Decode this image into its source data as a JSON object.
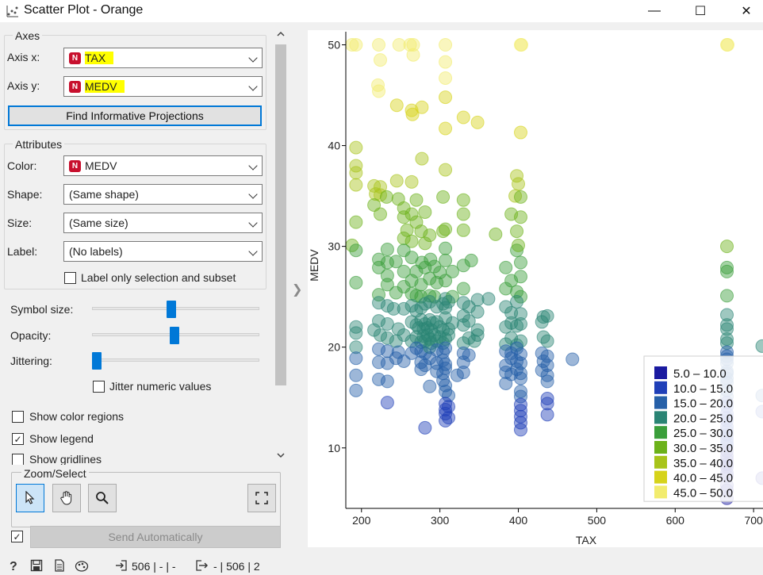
{
  "window": {
    "title": "Scatter Plot - Orange",
    "minimize": "—",
    "maximize": "☐",
    "close": "✕"
  },
  "axes": {
    "title": "Axes",
    "x_label": "Axis x:",
    "x_value": "TAX",
    "y_label": "Axis y:",
    "y_value": "MEDV",
    "find_button": "Find Informative Projections"
  },
  "attributes": {
    "title": "Attributes",
    "color_label": "Color:",
    "color_value": "MEDV",
    "shape_label": "Shape:",
    "shape_value": "(Same shape)",
    "size_label": "Size:",
    "size_value": "(Same size)",
    "label_label": "Label:",
    "label_value": "(No labels)",
    "label_only": "Label only selection and subset",
    "badge": "N"
  },
  "sliders": {
    "symbol_size": {
      "label": "Symbol size:",
      "value": 0.47
    },
    "opacity": {
      "label": "Opacity:",
      "value": 0.49
    },
    "jittering": {
      "label": "Jittering:",
      "value": 0.0
    }
  },
  "options": {
    "jitter_numeric": {
      "label": "Jitter numeric values",
      "checked": false
    },
    "color_regions": {
      "label": "Show color regions",
      "checked": false
    },
    "show_legend": {
      "label": "Show legend",
      "checked": true
    },
    "gridlines": {
      "label": "Show gridlines",
      "checked": false
    }
  },
  "zoom": {
    "title": "Zoom/Select"
  },
  "send": {
    "label": "Send Automatically",
    "checked": true
  },
  "status": {
    "input": "506 | - | -",
    "output": "- | 506 | 2"
  },
  "collapse_arrow": "❯",
  "chart_data": {
    "type": "scatter",
    "xlabel": "TAX",
    "ylabel": "MEDV",
    "xlim": [
      180,
      712
    ],
    "ylim": [
      4,
      51.3
    ],
    "xticks": [
      200,
      300,
      400,
      500,
      600,
      700
    ],
    "yticks": [
      10,
      20,
      30,
      40,
      50
    ],
    "grid": false,
    "legend_position": "bottom-right",
    "legend": [
      {
        "label": "5.0 – 10.0",
        "color": "#1a1aa0"
      },
      {
        "label": "10.0 – 15.0",
        "color": "#1f3fb8"
      },
      {
        "label": "15.0 – 20.0",
        "color": "#2660a8"
      },
      {
        "label": "20.0 – 25.0",
        "color": "#2a8474"
      },
      {
        "label": "25.0 – 30.0",
        "color": "#3a9e3a"
      },
      {
        "label": "30.0 – 35.0",
        "color": "#6cb21a"
      },
      {
        "label": "35.0 – 40.0",
        "color": "#a8c41a"
      },
      {
        "label": "40.0 – 45.0",
        "color": "#d6d31a"
      },
      {
        "label": "45.0 – 50.0",
        "color": "#f2ec6e"
      }
    ],
    "points": [
      [
        188,
        50
      ],
      [
        193,
        50
      ],
      [
        222,
        50
      ],
      [
        248,
        50
      ],
      [
        262,
        50
      ],
      [
        266,
        50
      ],
      [
        307,
        50
      ],
      [
        403,
        50
      ],
      [
        404,
        50
      ],
      [
        666,
        50
      ],
      [
        667,
        50
      ],
      [
        224,
        48.5
      ],
      [
        266,
        49
      ],
      [
        307,
        48.3
      ],
      [
        307,
        46.7
      ],
      [
        222,
        45.4
      ],
      [
        221,
        46
      ],
      [
        307,
        44.8
      ],
      [
        245,
        44
      ],
      [
        264,
        43.5
      ],
      [
        277,
        43.8
      ],
      [
        265,
        43.1
      ],
      [
        330,
        42.8
      ],
      [
        348,
        42.3
      ],
      [
        307,
        41.7
      ],
      [
        403,
        41.3
      ],
      [
        193,
        39.8
      ],
      [
        193,
        38
      ],
      [
        193,
        37.3
      ],
      [
        277,
        38.7
      ],
      [
        307,
        37.6
      ],
      [
        398,
        37
      ],
      [
        400,
        36.2
      ],
      [
        193,
        36.1
      ],
      [
        216,
        36
      ],
      [
        224,
        35.9
      ],
      [
        245,
        36.5
      ],
      [
        264,
        36.4
      ],
      [
        218,
        35.2
      ],
      [
        224,
        35.1
      ],
      [
        232,
        34.9
      ],
      [
        247,
        34.7
      ],
      [
        270,
        34.6
      ],
      [
        304,
        34.9
      ],
      [
        330,
        34.6
      ],
      [
        396,
        35
      ],
      [
        403,
        34.9
      ],
      [
        216,
        34.1
      ],
      [
        254,
        33.8
      ],
      [
        264,
        33.2
      ],
      [
        281,
        33.4
      ],
      [
        330,
        33.2
      ],
      [
        391,
        33.2
      ],
      [
        403,
        32.9
      ],
      [
        193,
        32.4
      ],
      [
        224,
        33.2
      ],
      [
        254,
        32.9
      ],
      [
        270,
        32.4
      ],
      [
        258,
        31.6
      ],
      [
        276,
        31.5
      ],
      [
        287,
        31.1
      ],
      [
        304,
        31.5
      ],
      [
        307,
        31.7
      ],
      [
        330,
        31.6
      ],
      [
        371,
        31.2
      ],
      [
        398,
        31.5
      ],
      [
        254,
        30.8
      ],
      [
        264,
        30.5
      ],
      [
        281,
        30.3
      ],
      [
        233,
        29.7
      ],
      [
        254,
        29.6
      ],
      [
        307,
        29.8
      ],
      [
        398,
        29.6
      ],
      [
        400,
        30.1
      ],
      [
        188,
        30.1
      ],
      [
        193,
        29.6
      ],
      [
        666,
        30
      ],
      [
        222,
        28.7
      ],
      [
        233,
        28.4
      ],
      [
        244,
        28.5
      ],
      [
        264,
        28.9
      ],
      [
        277,
        28.4
      ],
      [
        288,
        28.7
      ],
      [
        307,
        28.6
      ],
      [
        330,
        28.1
      ],
      [
        340,
        28.6
      ],
      [
        384,
        27.9
      ],
      [
        403,
        28.4
      ],
      [
        222,
        27.9
      ],
      [
        254,
        27.5
      ],
      [
        270,
        27.5
      ],
      [
        281,
        27.9
      ],
      [
        293,
        28
      ],
      [
        300,
        27.4
      ],
      [
        316,
        27.5
      ],
      [
        666,
        27.9
      ],
      [
        233,
        27.1
      ],
      [
        264,
        26.6
      ],
      [
        287,
        26.8
      ],
      [
        296,
        26.4
      ],
      [
        307,
        26.6
      ],
      [
        391,
        26.6
      ],
      [
        403,
        27
      ],
      [
        666,
        27.5
      ],
      [
        193,
        26.4
      ],
      [
        233,
        26.2
      ],
      [
        254,
        26
      ],
      [
        276,
        26.2
      ],
      [
        330,
        25.8
      ],
      [
        384,
        25.8
      ],
      [
        398,
        25.5
      ],
      [
        222,
        25.2
      ],
      [
        244,
        25.4
      ],
      [
        264,
        25.3
      ],
      [
        270,
        25.1
      ],
      [
        276,
        25
      ],
      [
        287,
        25.1
      ],
      [
        293,
        25
      ],
      [
        307,
        24.8
      ],
      [
        316,
        25
      ],
      [
        330,
        24.4
      ],
      [
        348,
        24.7
      ],
      [
        362,
        24.8
      ],
      [
        403,
        25
      ],
      [
        666,
        25.1
      ],
      [
        222,
        24.4
      ],
      [
        233,
        24.1
      ],
      [
        241,
        23.8
      ],
      [
        254,
        23.8
      ],
      [
        264,
        24.1
      ],
      [
        270,
        23.6
      ],
      [
        276,
        23.9
      ],
      [
        281,
        24.3
      ],
      [
        287,
        24.5
      ],
      [
        296,
        24
      ],
      [
        304,
        24.3
      ],
      [
        307,
        23.9
      ],
      [
        311,
        24.5
      ],
      [
        330,
        23.1
      ],
      [
        337,
        24
      ],
      [
        348,
        23.5
      ],
      [
        384,
        24
      ],
      [
        391,
        23.4
      ],
      [
        398,
        24.5
      ],
      [
        403,
        23.3
      ],
      [
        432,
        23
      ],
      [
        437,
        23.1
      ],
      [
        666,
        23.2
      ],
      [
        193,
        22
      ],
      [
        216,
        21.7
      ],
      [
        222,
        22.6
      ],
      [
        233,
        22.3
      ],
      [
        247,
        21.8
      ],
      [
        264,
        22.5
      ],
      [
        270,
        22.2
      ],
      [
        273,
        21.9
      ],
      [
        276,
        22.7
      ],
      [
        279,
        21.8
      ],
      [
        281,
        22.3
      ],
      [
        284,
        21.9
      ],
      [
        287,
        22.7
      ],
      [
        289,
        21.7
      ],
      [
        291,
        22.4
      ],
      [
        296,
        22.5
      ],
      [
        300,
        22
      ],
      [
        304,
        21.7
      ],
      [
        307,
        22.9
      ],
      [
        311,
        21.8
      ],
      [
        316,
        22.4
      ],
      [
        330,
        22.2
      ],
      [
        337,
        22.6
      ],
      [
        348,
        21.7
      ],
      [
        384,
        22
      ],
      [
        391,
        22.4
      ],
      [
        398,
        22.1
      ],
      [
        403,
        22.3
      ],
      [
        430,
        22.5
      ],
      [
        666,
        22.2
      ],
      [
        666,
        21.8
      ],
      [
        193,
        21.4
      ],
      [
        224,
        21.2
      ],
      [
        233,
        20.9
      ],
      [
        244,
        20.6
      ],
      [
        254,
        21.2
      ],
      [
        264,
        20.6
      ],
      [
        270,
        21
      ],
      [
        276,
        20.5
      ],
      [
        279,
        21.1
      ],
      [
        281,
        20.6
      ],
      [
        284,
        21.2
      ],
      [
        287,
        20.8
      ],
      [
        289,
        20.4
      ],
      [
        293,
        21.2
      ],
      [
        296,
        20.6
      ],
      [
        300,
        21
      ],
      [
        304,
        20.4
      ],
      [
        307,
        20.8
      ],
      [
        311,
        21.2
      ],
      [
        330,
        20.4
      ],
      [
        337,
        20.9
      ],
      [
        344,
        20.6
      ],
      [
        348,
        21.2
      ],
      [
        384,
        20.3
      ],
      [
        391,
        20.9
      ],
      [
        398,
        20.2
      ],
      [
        403,
        20.6
      ],
      [
        432,
        21
      ],
      [
        437,
        20.6
      ],
      [
        666,
        20.8
      ],
      [
        666,
        20.4
      ],
      [
        711,
        20.1
      ],
      [
        193,
        20
      ],
      [
        222,
        19.8
      ],
      [
        233,
        19.6
      ],
      [
        247,
        19.5
      ],
      [
        264,
        19.4
      ],
      [
        270,
        19.9
      ],
      [
        276,
        19.6
      ],
      [
        281,
        19.4
      ],
      [
        287,
        20
      ],
      [
        296,
        19.7
      ],
      [
        304,
        19.5
      ],
      [
        307,
        19.9
      ],
      [
        330,
        19.4
      ],
      [
        337,
        19.2
      ],
      [
        384,
        19.6
      ],
      [
        391,
        19.4
      ],
      [
        398,
        19.9
      ],
      [
        403,
        19.3
      ],
      [
        430,
        19.4
      ],
      [
        437,
        19.1
      ],
      [
        666,
        19.5
      ],
      [
        666,
        19.1
      ],
      [
        193,
        18.9
      ],
      [
        222,
        18.5
      ],
      [
        233,
        18.4
      ],
      [
        244,
        18.9
      ],
      [
        254,
        18.6
      ],
      [
        276,
        18.5
      ],
      [
        281,
        18.2
      ],
      [
        287,
        18.9
      ],
      [
        296,
        18.4
      ],
      [
        304,
        18.7
      ],
      [
        307,
        18.3
      ],
      [
        330,
        18.5
      ],
      [
        384,
        18.2
      ],
      [
        391,
        18.9
      ],
      [
        398,
        18.6
      ],
      [
        403,
        18.4
      ],
      [
        432,
        18.6
      ],
      [
        437,
        18.2
      ],
      [
        469,
        18.8
      ],
      [
        666,
        18.4
      ],
      [
        666,
        18.8
      ],
      [
        276,
        17.8
      ],
      [
        296,
        17.6
      ],
      [
        304,
        17.4
      ],
      [
        307,
        17.9
      ],
      [
        322,
        17.2
      ],
      [
        330,
        17.5
      ],
      [
        384,
        17.5
      ],
      [
        391,
        17.3
      ],
      [
        398,
        17.8
      ],
      [
        403,
        17.4
      ],
      [
        430,
        17.7
      ],
      [
        437,
        17.2
      ],
      [
        666,
        17.4
      ],
      [
        666,
        17.6
      ],
      [
        193,
        17.2
      ],
      [
        222,
        16.8
      ],
      [
        233,
        16.6
      ],
      [
        287,
        16.1
      ],
      [
        304,
        16.7
      ],
      [
        307,
        16.2
      ],
      [
        384,
        16.4
      ],
      [
        403,
        16.9
      ],
      [
        437,
        16.6
      ],
      [
        666,
        16.9
      ],
      [
        666,
        16.5
      ],
      [
        193,
        15.7
      ],
      [
        307,
        15.6
      ],
      [
        311,
        15.2
      ],
      [
        403,
        15.6
      ],
      [
        437,
        14.9
      ],
      [
        403,
        15.1
      ],
      [
        666,
        15.7
      ],
      [
        666,
        15.1
      ],
      [
        711,
        15.2
      ],
      [
        233,
        14.5
      ],
      [
        307,
        14.4
      ],
      [
        311,
        14.1
      ],
      [
        403,
        14.3
      ],
      [
        437,
        14.4
      ],
      [
        666,
        14.5
      ],
      [
        666,
        14.1
      ],
      [
        307,
        13.8
      ],
      [
        307,
        13.4
      ],
      [
        311,
        13
      ],
      [
        403,
        13.7
      ],
      [
        403,
        13.1
      ],
      [
        437,
        13.3
      ],
      [
        666,
        13.4
      ],
      [
        666,
        13
      ],
      [
        711,
        13.6
      ],
      [
        307,
        12.7
      ],
      [
        403,
        12.5
      ],
      [
        666,
        12.7
      ],
      [
        666,
        12.1
      ],
      [
        281,
        12
      ],
      [
        403,
        11.8
      ],
      [
        666,
        11.7
      ],
      [
        666,
        11.3
      ],
      [
        666,
        10.9
      ],
      [
        666,
        10.5
      ],
      [
        666,
        10.2
      ],
      [
        666,
        9.7
      ],
      [
        666,
        9.2
      ],
      [
        666,
        8.8
      ],
      [
        666,
        8.4
      ],
      [
        666,
        8.1
      ],
      [
        666,
        7.5
      ],
      [
        666,
        7.2
      ],
      [
        711,
        7
      ],
      [
        666,
        6.3
      ],
      [
        666,
        5.8
      ],
      [
        666,
        5
      ]
    ]
  }
}
